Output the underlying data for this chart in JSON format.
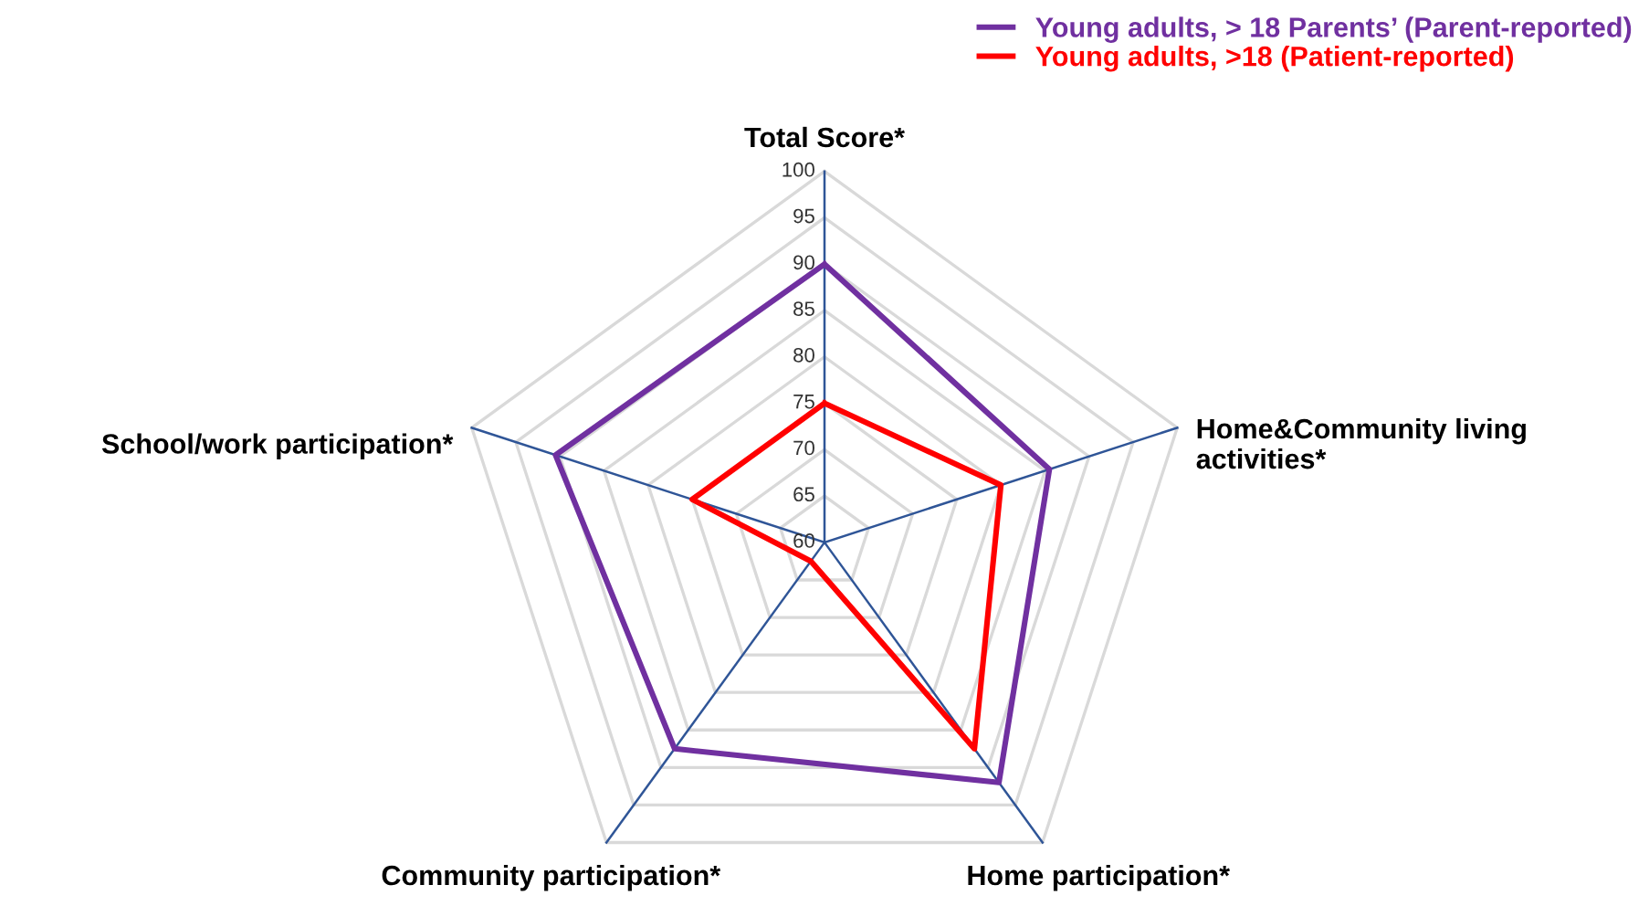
{
  "chart_data": {
    "type": "radar",
    "categories": [
      "Total Score*",
      "Home&Community living\nactivities*",
      "Home participation*",
      "Community participation*",
      "School/work participation*"
    ],
    "series": [
      {
        "name": "Young adults, > 18 Parents’ (Parent-reported)",
        "color": "#7030a0",
        "values": [
          90,
          85.5,
          92,
          87.5,
          90.5
        ]
      },
      {
        "name": "Young adults, >18 (Patient-reported)",
        "color": "#ff0000",
        "values": [
          75,
          80,
          87.5,
          62.5,
          75
        ]
      }
    ],
    "ylim": [
      60,
      100
    ],
    "yticks": [
      60,
      65,
      70,
      75,
      80,
      85,
      90,
      95,
      100
    ],
    "grid": true,
    "legend": "top right",
    "marker": "none",
    "line_style": "solid"
  }
}
